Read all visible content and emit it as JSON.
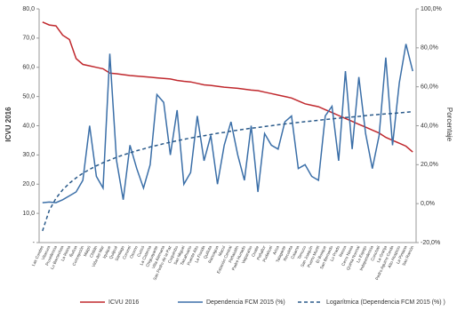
{
  "chart_data": {
    "type": "line",
    "y_label": "ICVU 2016",
    "y2_label": "Porcentaje",
    "categories": [
      "Las Condes",
      "Vitacura",
      "Providencia",
      "Lo Barnechea",
      "La Reina",
      "Ñuñoa",
      "Concepción",
      "Maipú",
      "Chillán",
      "Viña del Mar",
      "Iquique",
      "Quilpué",
      "Santiago",
      "Coronel",
      "Osorno",
      "Curicó",
      "La Cisterna",
      "Chiguayante",
      "Villa Alemana",
      "San Pedro de la Paz",
      "Coquimbo",
      "San Miguel",
      "Talcahuano",
      "Puente Alto",
      "La Florida",
      "Quillota",
      "Rancagua",
      "Macul",
      "Estación Central",
      "Peñalolén",
      "Padre Hurtado",
      "Valparaíso",
      "Ovalle",
      "Peñaflor",
      "Pudahuel",
      "Arica",
      "Talagante",
      "Recoleta",
      "Calama",
      "Temuco",
      "San Joaquín",
      "Puerto Montt",
      "El Bosque",
      "San Bernardo",
      "Lo Prado",
      "Renca",
      "Cerro Navia",
      "Quinta Normal",
      "Lo Espejo",
      "Independencia",
      "Conchalí",
      "La Granja",
      "Pedro Aguirre Cerda",
      "Alto Hospicio",
      "La Pintana",
      "San Ramón"
    ],
    "series": [
      {
        "name": "ICVU 2016",
        "color": "#c0282d",
        "axis": "y",
        "dashed": false,
        "values": [
          75.5,
          74.5,
          74.2,
          71,
          69.5,
          63,
          61,
          60.5,
          60,
          59.5,
          58,
          57.8,
          57.5,
          57.2,
          57,
          56.8,
          56.6,
          56.4,
          56.2,
          56,
          55.5,
          55.2,
          55,
          54.5,
          54,
          53.8,
          53.5,
          53.2,
          53,
          52.8,
          52.5,
          52.2,
          52,
          51.5,
          51,
          50.5,
          50,
          49.5,
          48.5,
          47.5,
          47,
          46.5,
          45.5,
          44.5,
          43.5,
          42.5,
          41.5,
          40.5,
          39.5,
          38.5,
          37.5,
          36,
          35,
          34,
          33,
          31
        ]
      },
      {
        "name": "Dependencia FCM 2015 (%)",
        "color": "#3b6fa8",
        "axis": "y2",
        "dashed": false,
        "values": [
          0.5,
          0.8,
          0.5,
          2,
          4,
          6,
          12,
          40,
          14,
          8,
          77,
          22,
          2,
          30,
          18,
          8,
          20,
          56,
          52,
          25,
          48,
          10,
          16,
          45,
          22,
          35,
          10,
          30,
          42,
          25,
          12,
          40,
          6,
          36,
          30,
          28,
          42,
          45,
          18,
          20,
          14,
          12,
          45,
          50,
          22,
          68,
          28,
          65,
          36,
          18,
          35,
          75,
          30,
          62,
          82,
          68
        ]
      },
      {
        "name": "Logarítmica (Dependencia FCM 2015 (%) )",
        "color": "#2a5a8a",
        "axis": "y2",
        "dashed": true,
        "values": [
          -14,
          -3.5,
          2.7,
          7.1,
          10.5,
          13.2,
          15.6,
          17.6,
          19.4,
          21,
          22.4,
          23.8,
          25,
          26.1,
          27.2,
          28.1,
          29.1,
          29.9,
          30.8,
          31.5,
          32.3,
          33,
          33.7,
          34.3,
          34.9,
          35.5,
          36.1,
          36.6,
          37.2,
          37.7,
          38.2,
          38.7,
          39.1,
          39.6,
          40,
          40.5,
          40.9,
          41.3,
          41.7,
          42.1,
          42.4,
          42.8,
          43.2,
          43.5,
          43.9,
          44.2,
          44.5,
          44.8,
          45.2,
          45.5,
          45.8,
          46.1,
          46.3,
          46.6,
          46.9,
          47.2
        ]
      }
    ],
    "ylim": [
      0,
      80
    ],
    "yticks": [
      {
        "value": 0,
        "label": "-"
      },
      {
        "value": 10,
        "label": "10,0"
      },
      {
        "value": 20,
        "label": "20,0"
      },
      {
        "value": 30,
        "label": "30,0"
      },
      {
        "value": 40,
        "label": "40,0"
      },
      {
        "value": 50,
        "label": "50,0"
      },
      {
        "value": 60,
        "label": "60,0"
      },
      {
        "value": 70,
        "label": "70,0"
      },
      {
        "value": 80,
        "label": "80,0"
      }
    ],
    "y2lim": [
      -20,
      100
    ],
    "y2ticks": [
      {
        "value": -20,
        "label": "-20,0%"
      },
      {
        "value": 0,
        "label": "0,0%"
      },
      {
        "value": 20,
        "label": "20,0%"
      },
      {
        "value": 40,
        "label": "40,0%"
      },
      {
        "value": 60,
        "label": "60,0%"
      },
      {
        "value": 80,
        "label": "80,0%"
      },
      {
        "value": 100,
        "label": "100,0%"
      }
    ],
    "grid": false
  }
}
